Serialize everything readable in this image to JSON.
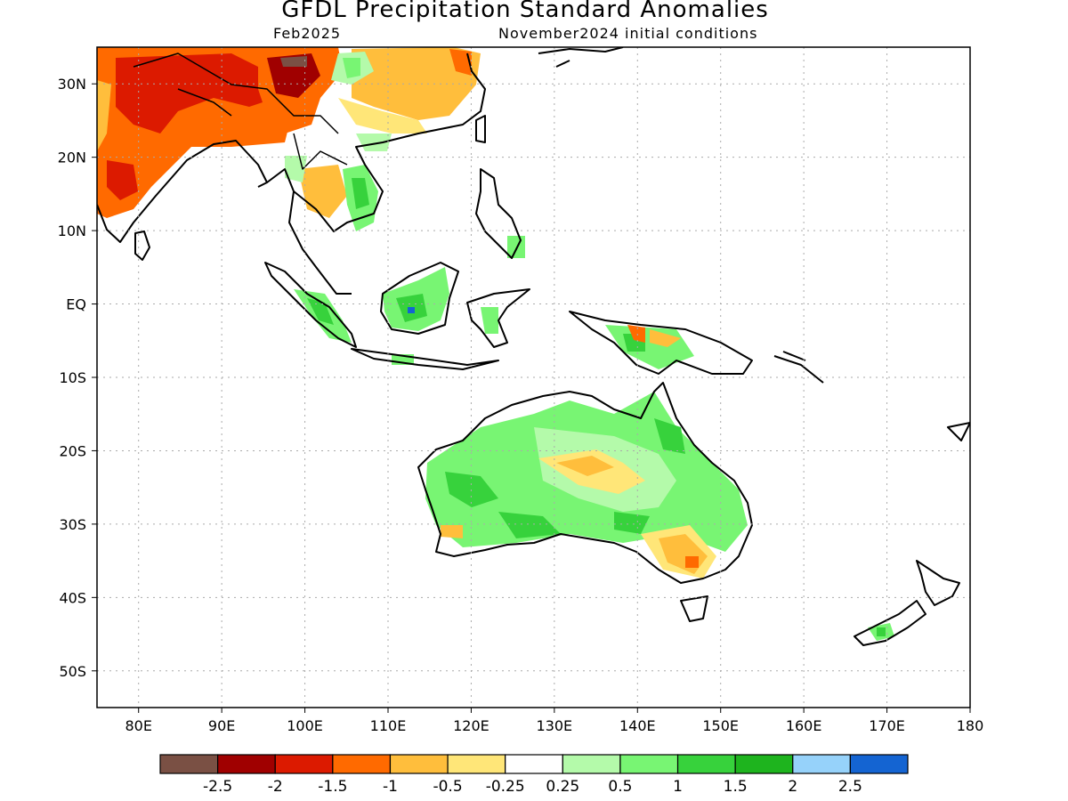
{
  "title": "GFDL Precipitation Standard Anomalies",
  "subtitle_left": "Feb2025",
  "subtitle_right": "November2024 initial conditions",
  "map": {
    "lon_range": [
      75,
      180
    ],
    "lat_range": [
      -55,
      35
    ],
    "grid": "dotted"
  },
  "y_ticks": [
    {
      "lat": 30,
      "label": "30N"
    },
    {
      "lat": 20,
      "label": "20N"
    },
    {
      "lat": 10,
      "label": "10N"
    },
    {
      "lat": 0,
      "label": "EQ"
    },
    {
      "lat": -10,
      "label": "10S"
    },
    {
      "lat": -20,
      "label": "20S"
    },
    {
      "lat": -30,
      "label": "30S"
    },
    {
      "lat": -40,
      "label": "40S"
    },
    {
      "lat": -50,
      "label": "50S"
    }
  ],
  "x_ticks": [
    {
      "lon": 80,
      "label": "80E"
    },
    {
      "lon": 90,
      "label": "90E"
    },
    {
      "lon": 100,
      "label": "100E"
    },
    {
      "lon": 110,
      "label": "110E"
    },
    {
      "lon": 120,
      "label": "120E"
    },
    {
      "lon": 130,
      "label": "130E"
    },
    {
      "lon": 140,
      "label": "140E"
    },
    {
      "lon": 150,
      "label": "150E"
    },
    {
      "lon": 160,
      "label": "160E"
    },
    {
      "lon": 170,
      "label": "170E"
    },
    {
      "lon": 180,
      "label": "180"
    }
  ],
  "colorbar": {
    "colors": [
      "#7a5044",
      "#a00000",
      "#dc1a00",
      "#ff6a00",
      "#ffbe3c",
      "#ffe678",
      "#ffffff",
      "#b4faaa",
      "#78f573",
      "#37d23c",
      "#1eb41e",
      "#96d2fa",
      "#1464d2"
    ],
    "labels": [
      "-2.5",
      "-2",
      "-1.5",
      "-1",
      "-0.5",
      "-0.25",
      "0.25",
      "0.5",
      "1",
      "1.5",
      "2",
      "2.5"
    ]
  }
}
